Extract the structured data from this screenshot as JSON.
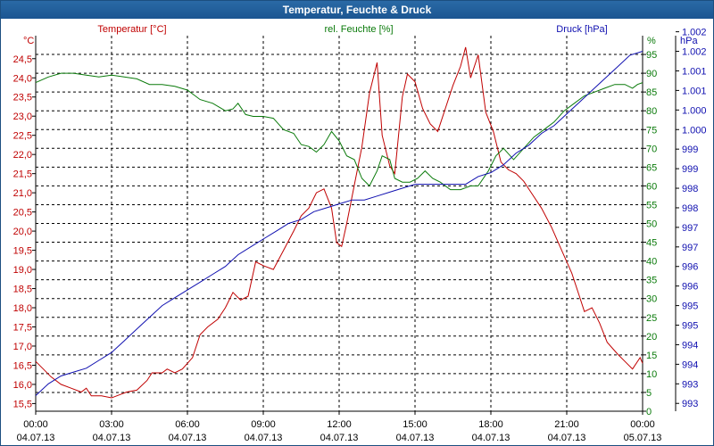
{
  "window": {
    "title": "Temperatur, Feuchte & Druck"
  },
  "colors": {
    "temperature": "#c00000",
    "humidity": "#0a7a0a",
    "pressure": "#1010b0",
    "grid": "#000000",
    "titlebar": "#1b5592"
  },
  "chart_data": {
    "type": "line",
    "title": "Temperatur, Feuchte & Druck",
    "x_ticks": [
      {
        "time": "00:00",
        "date": "04.07.13"
      },
      {
        "time": "03:00",
        "date": "04.07.13"
      },
      {
        "time": "06:00",
        "date": "04.07.13"
      },
      {
        "time": "09:00",
        "date": "04.07.13"
      },
      {
        "time": "12:00",
        "date": "04.07.13"
      },
      {
        "time": "15:00",
        "date": "04.07.13"
      },
      {
        "time": "18:00",
        "date": "04.07.13"
      },
      {
        "time": "21:00",
        "date": "04.07.13"
      },
      {
        "time": "00:00",
        "date": "05.07.13"
      }
    ],
    "x_range_hours": [
      0,
      24
    ],
    "axes": {
      "temperature": {
        "label": "Temperatur [°C]",
        "unit": "°C",
        "range": [
          15.3,
          25.1
        ],
        "ticks": [
          "15,5",
          "16,0",
          "16,5",
          "17,0",
          "17,5",
          "18,0",
          "18,5",
          "19,0",
          "19,5",
          "20,0",
          "20,5",
          "21,0",
          "21,5",
          "22,0",
          "22,5",
          "23,0",
          "23,5",
          "24,0",
          "24,5"
        ]
      },
      "humidity": {
        "label": "rel. Feuchte [%]",
        "unit": "%",
        "range": [
          0,
          100
        ],
        "ticks": [
          "0",
          "5",
          "10",
          "15",
          "20",
          "25",
          "30",
          "35",
          "40",
          "45",
          "50",
          "55",
          "60",
          "65",
          "70",
          "75",
          "80",
          "85",
          "90",
          "95"
        ]
      },
      "pressure": {
        "label": "Druck [hPa]",
        "unit": "hPa",
        "range": [
          992.8,
          1002.4
        ],
        "ticks": [
          "993",
          "993",
          "994",
          "994",
          "995",
          "995",
          "996",
          "996",
          "997",
          "997",
          "998",
          "998",
          "999",
          "999",
          "1.000",
          "1.000",
          "1.001",
          "1.001",
          "1.002",
          "1.002"
        ]
      }
    },
    "series": [
      {
        "name": "Temperatur",
        "axis": "temperature",
        "points": [
          [
            0,
            16.6
          ],
          [
            0.3,
            16.4
          ],
          [
            0.6,
            16.2
          ],
          [
            1.0,
            16.0
          ],
          [
            1.4,
            15.9
          ],
          [
            1.8,
            15.8
          ],
          [
            2.0,
            15.9
          ],
          [
            2.2,
            15.7
          ],
          [
            2.6,
            15.7
          ],
          [
            3.0,
            15.65
          ],
          [
            3.4,
            15.75
          ],
          [
            3.6,
            15.8
          ],
          [
            4.0,
            15.85
          ],
          [
            4.4,
            16.1
          ],
          [
            4.6,
            16.3
          ],
          [
            5.0,
            16.3
          ],
          [
            5.2,
            16.4
          ],
          [
            5.5,
            16.3
          ],
          [
            5.8,
            16.4
          ],
          [
            6.2,
            16.7
          ],
          [
            6.5,
            17.3
          ],
          [
            6.8,
            17.5
          ],
          [
            7.2,
            17.7
          ],
          [
            7.5,
            18.0
          ],
          [
            7.8,
            18.4
          ],
          [
            8.1,
            18.2
          ],
          [
            8.4,
            18.3
          ],
          [
            8.7,
            19.2
          ],
          [
            9.0,
            19.1
          ],
          [
            9.4,
            19.0
          ],
          [
            9.8,
            19.5
          ],
          [
            10.2,
            20.0
          ],
          [
            10.5,
            20.4
          ],
          [
            10.8,
            20.6
          ],
          [
            11.1,
            21.0
          ],
          [
            11.4,
            21.1
          ],
          [
            11.7,
            20.6
          ],
          [
            11.9,
            19.7
          ],
          [
            12.1,
            19.6
          ],
          [
            12.3,
            20.2
          ],
          [
            12.6,
            21.2
          ],
          [
            12.9,
            22.2
          ],
          [
            13.2,
            23.6
          ],
          [
            13.5,
            24.4
          ],
          [
            13.7,
            22.5
          ],
          [
            14.0,
            21.7
          ],
          [
            14.2,
            21.5
          ],
          [
            14.5,
            23.5
          ],
          [
            14.7,
            24.1
          ],
          [
            15.0,
            23.9
          ],
          [
            15.3,
            23.2
          ],
          [
            15.6,
            22.8
          ],
          [
            15.9,
            22.6
          ],
          [
            16.2,
            23.2
          ],
          [
            16.5,
            23.8
          ],
          [
            16.8,
            24.3
          ],
          [
            17.0,
            24.8
          ],
          [
            17.2,
            24.0
          ],
          [
            17.5,
            24.6
          ],
          [
            17.8,
            23.1
          ],
          [
            18.1,
            22.6
          ],
          [
            18.4,
            21.8
          ],
          [
            18.7,
            21.6
          ],
          [
            19.0,
            21.5
          ],
          [
            19.3,
            21.3
          ],
          [
            19.6,
            21.0
          ],
          [
            20.0,
            20.6
          ],
          [
            20.4,
            20.1
          ],
          [
            20.8,
            19.5
          ],
          [
            21.2,
            18.9
          ],
          [
            21.5,
            18.3
          ],
          [
            21.7,
            17.9
          ],
          [
            22.0,
            18.0
          ],
          [
            22.3,
            17.6
          ],
          [
            22.6,
            17.1
          ],
          [
            23.0,
            16.8
          ],
          [
            23.3,
            16.6
          ],
          [
            23.6,
            16.4
          ],
          [
            23.9,
            16.7
          ],
          [
            24.0,
            16.55
          ]
        ]
      },
      {
        "name": "rel. Feuchte",
        "axis": "humidity",
        "points": [
          [
            0,
            87.5
          ],
          [
            0.5,
            89
          ],
          [
            1.0,
            90
          ],
          [
            1.5,
            90
          ],
          [
            2.0,
            89.5
          ],
          [
            2.5,
            89
          ],
          [
            3.0,
            89.5
          ],
          [
            3.5,
            89
          ],
          [
            4.0,
            88.5
          ],
          [
            4.5,
            87
          ],
          [
            5.0,
            87
          ],
          [
            5.5,
            86.5
          ],
          [
            6.0,
            85.5
          ],
          [
            6.5,
            83
          ],
          [
            7.0,
            82
          ],
          [
            7.5,
            80
          ],
          [
            7.8,
            80.5
          ],
          [
            8.0,
            82
          ],
          [
            8.3,
            79
          ],
          [
            8.6,
            78.5
          ],
          [
            9.0,
            78.5
          ],
          [
            9.4,
            78
          ],
          [
            9.8,
            75
          ],
          [
            10.2,
            74
          ],
          [
            10.5,
            71
          ],
          [
            10.8,
            70.5
          ],
          [
            11.1,
            69
          ],
          [
            11.4,
            71
          ],
          [
            11.7,
            74.5
          ],
          [
            12.0,
            72
          ],
          [
            12.3,
            68
          ],
          [
            12.6,
            67
          ],
          [
            12.9,
            62
          ],
          [
            13.2,
            60
          ],
          [
            13.5,
            64
          ],
          [
            13.7,
            68
          ],
          [
            14.0,
            67
          ],
          [
            14.2,
            62
          ],
          [
            14.5,
            61
          ],
          [
            14.8,
            61
          ],
          [
            15.1,
            62
          ],
          [
            15.4,
            64
          ],
          [
            15.7,
            62
          ],
          [
            16.0,
            61
          ],
          [
            16.4,
            59
          ],
          [
            16.8,
            59
          ],
          [
            17.2,
            60
          ],
          [
            17.5,
            60
          ],
          [
            17.9,
            64
          ],
          [
            18.2,
            68
          ],
          [
            18.5,
            70
          ],
          [
            18.9,
            67
          ],
          [
            19.3,
            70
          ],
          [
            19.7,
            73
          ],
          [
            20.1,
            75
          ],
          [
            20.5,
            77
          ],
          [
            20.9,
            80
          ],
          [
            21.3,
            82
          ],
          [
            21.7,
            84
          ],
          [
            22.1,
            85
          ],
          [
            22.5,
            86
          ],
          [
            22.9,
            87
          ],
          [
            23.3,
            87
          ],
          [
            23.6,
            86
          ],
          [
            23.8,
            87
          ],
          [
            24.0,
            87.5
          ]
        ]
      },
      {
        "name": "Druck",
        "axis": "pressure",
        "points": [
          [
            0,
            993.2
          ],
          [
            0.5,
            993.5
          ],
          [
            1.0,
            993.7
          ],
          [
            1.5,
            993.8
          ],
          [
            2.0,
            993.9
          ],
          [
            2.5,
            994.1
          ],
          [
            3.0,
            994.3
          ],
          [
            3.5,
            994.6
          ],
          [
            4.0,
            994.9
          ],
          [
            4.5,
            995.2
          ],
          [
            5.0,
            995.5
          ],
          [
            5.5,
            995.7
          ],
          [
            6.0,
            995.9
          ],
          [
            6.5,
            996.1
          ],
          [
            7.0,
            996.3
          ],
          [
            7.5,
            996.5
          ],
          [
            8.0,
            996.8
          ],
          [
            8.5,
            997.0
          ],
          [
            9.0,
            997.2
          ],
          [
            9.5,
            997.4
          ],
          [
            10.0,
            997.6
          ],
          [
            10.5,
            997.7
          ],
          [
            11.0,
            997.9
          ],
          [
            11.5,
            998.0
          ],
          [
            12.0,
            998.1
          ],
          [
            12.5,
            998.2
          ],
          [
            13.0,
            998.2
          ],
          [
            13.5,
            998.3
          ],
          [
            14.0,
            998.4
          ],
          [
            14.5,
            998.5
          ],
          [
            15.0,
            998.6
          ],
          [
            15.5,
            998.6
          ],
          [
            16.0,
            998.6
          ],
          [
            16.5,
            998.6
          ],
          [
            17.0,
            998.6
          ],
          [
            17.5,
            998.8
          ],
          [
            18.0,
            998.9
          ],
          [
            18.5,
            999.1
          ],
          [
            19.0,
            999.4
          ],
          [
            19.5,
            999.6
          ],
          [
            20.0,
            999.9
          ],
          [
            20.5,
            1000.1
          ],
          [
            21.0,
            1000.4
          ],
          [
            21.5,
            1000.7
          ],
          [
            22.0,
            1001.0
          ],
          [
            22.5,
            1001.3
          ],
          [
            23.0,
            1001.6
          ],
          [
            23.5,
            1001.9
          ],
          [
            24.0,
            1002.0
          ]
        ]
      }
    ]
  }
}
